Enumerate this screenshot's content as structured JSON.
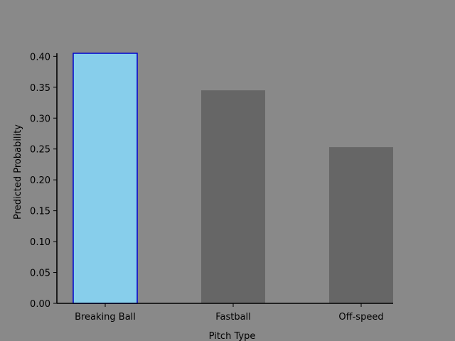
{
  "chart_data": {
    "type": "bar",
    "categories": [
      "Breaking Ball",
      "Fastball",
      "Off-speed"
    ],
    "values": [
      0.405,
      0.345,
      0.253
    ],
    "xlabel": "Pitch Type",
    "ylabel": "Predicted Probability",
    "ylim": [
      0,
      0.405
    ],
    "yticks": [
      "0.00",
      "0.05",
      "0.10",
      "0.15",
      "0.20",
      "0.25",
      "0.30",
      "0.35",
      "0.40"
    ],
    "highlight_index": 0,
    "grid": false,
    "colors": {
      "background": "#898989",
      "bar": "#666666",
      "highlight_fill": "#87ceeb",
      "highlight_edge": "#0000cc",
      "axis": "#000000"
    }
  }
}
